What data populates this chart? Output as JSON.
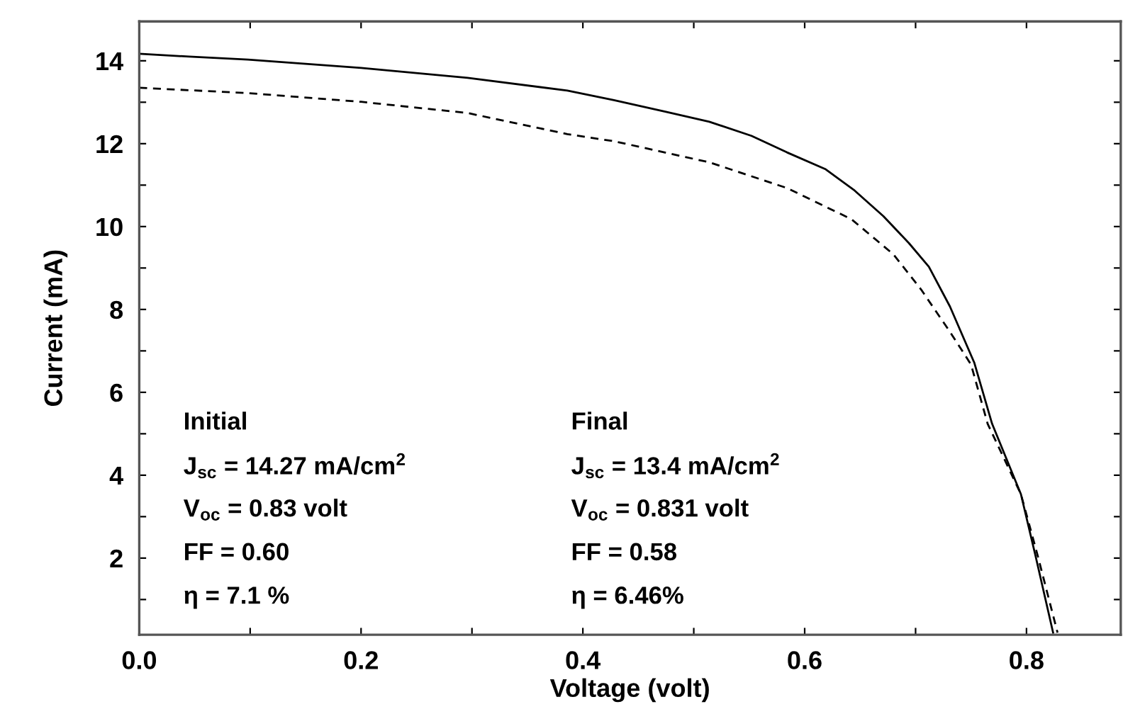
{
  "chart_data": {
    "type": "line",
    "xlabel": "Voltage (volt)",
    "ylabel": "Current (mA)",
    "xlim": [
      0,
      0.885
    ],
    "ylim": [
      0.15,
      14.95
    ],
    "xticks": [
      {
        "value": 0,
        "label": "0.0"
      },
      {
        "value": 0.1,
        "label": null
      },
      {
        "value": 0.2,
        "label": "0.2"
      },
      {
        "value": 0.3,
        "label": null
      },
      {
        "value": 0.4,
        "label": "0.4"
      },
      {
        "value": 0.5,
        "label": null
      },
      {
        "value": 0.6,
        "label": "0.6"
      },
      {
        "value": 0.7,
        "label": null
      },
      {
        "value": 0.8,
        "label": "0.8"
      }
    ],
    "yticks": [
      {
        "value": 1,
        "label": null
      },
      2,
      {
        "value": 3,
        "label": null
      },
      4,
      {
        "value": 5,
        "label": null
      },
      6,
      {
        "value": 7,
        "label": null
      },
      8,
      {
        "value": 9,
        "label": null
      },
      10,
      {
        "value": 11,
        "label": null
      },
      12,
      {
        "value": 13,
        "label": null
      },
      14
    ],
    "grid": false,
    "legend": false,
    "marker": "none",
    "series": [
      {
        "color": "#000000",
        "line_style": "solid",
        "x": [
          0,
          0.045,
          0.098,
          0.2,
          0.296,
          0.386,
          0.428,
          0.475,
          0.514,
          0.552,
          0.584,
          0.619,
          0.645,
          0.671,
          0.694,
          0.712,
          0.731,
          0.753,
          0.769,
          0.795,
          0.808,
          0.824
        ],
        "values": [
          14.17,
          14.1,
          14.03,
          13.83,
          13.59,
          13.28,
          13.05,
          12.77,
          12.53,
          12.19,
          11.79,
          11.38,
          10.87,
          10.25,
          9.6,
          9.03,
          8.07,
          6.71,
          5.24,
          3.54,
          2.07,
          0.2
        ]
      },
      {
        "color": "#000000",
        "line_style": "dashed",
        "x": [
          0,
          0.098,
          0.2,
          0.296,
          0.386,
          0.428,
          0.514,
          0.584,
          0.642,
          0.68,
          0.705,
          0.731,
          0.75,
          0.765,
          0.795,
          0.81,
          0.828
        ],
        "values": [
          13.35,
          13.22,
          13.01,
          12.74,
          12.23,
          12.06,
          11.55,
          10.93,
          10.18,
          9.33,
          8.48,
          7.46,
          6.67,
          5.24,
          3.54,
          2.07,
          0.2
        ]
      }
    ],
    "annotations": [
      "Initial",
      "J$_{sc}$ = 14.27 mA/cm$^{2}$",
      "V$_{oc}$ = 0.83 volt",
      "FF = 0.60",
      "η = 7.1 %",
      "Final",
      "J$_{sc}$ = 13.4 mA/cm$^{2}$",
      "V$_{oc}$ = 0.831 volt",
      "FF = 0.58",
      "η = 6.46%"
    ]
  }
}
